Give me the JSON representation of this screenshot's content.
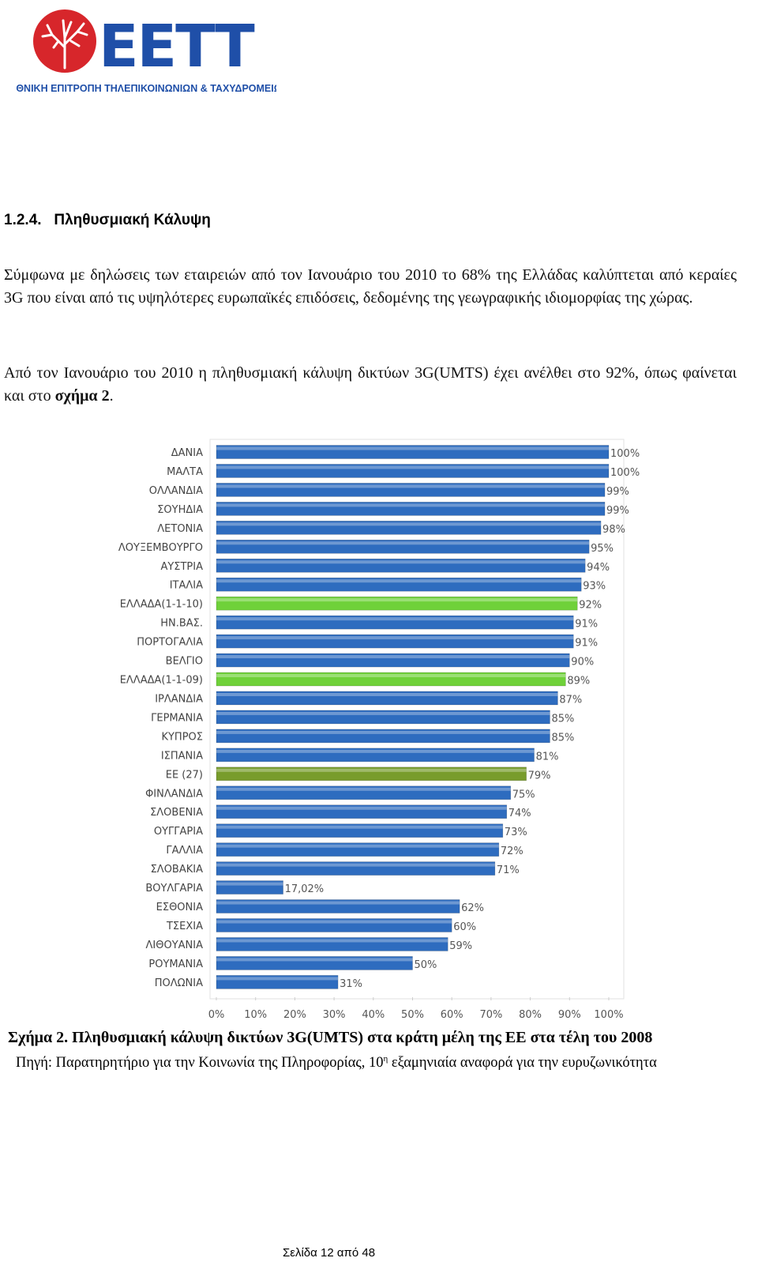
{
  "header": {
    "logo_text": "EETT",
    "org": "ΕΘΝΙΚΗ ΕΠΙΤΡΟΠΗ ΤΗΛΕΠΙΚΟΙΝΩΝΙΩΝ & ΤΑΧΥΔΡΟΜΕΙΩΝ"
  },
  "section": {
    "number": "1.2.4.",
    "title": "Πληθυσμιακή Κάλυψη"
  },
  "paragraphs": [
    [
      "Σύμφωνα με δηλώσεις των εταιρειών από τον Ιανουάριο του 2010 το 68% της Ελλάδας καλύπτεται από κεραίες 3G που είναι από τις υψηλότερες ευρωπαϊκές επιδόσεις, δεδομένης της γεωγραφικής ιδιομορφίας της χώρας."
    ],
    [
      "Από τον Ιανουάριο του 2010 η πληθυσμιακή κάλυψη δικτύων 3G(UMTS) έχει ανέλθει στο 92%, όπως φαίνεται και στο ",
      "σχήμα 2",
      "."
    ]
  ],
  "chart_data": {
    "type": "bar",
    "orientation": "horizontal",
    "categories": [
      "ΔΑΝΙΑ",
      "ΜΑΛΤΑ",
      "ΟΛΛΑΝΔΙΑ",
      "ΣΟΥΗΔΙΑ",
      "ΛΕΤΟΝΙΑ",
      "ΛΟΥΞΕΜΒΟΥΡΓΟ",
      "ΑΥΣΤΡΙΑ",
      "ΙΤΑΛΙΑ",
      "ΕΛΛΑΔΑ(1-1-10)",
      "ΗΝ.ΒΑΣ.",
      "ΠΟΡΤΟΓΑΛΙΑ",
      "ΒΕΛΓΙΟ",
      "ΕΛΛΑΔΑ(1-1-09)",
      "ΙΡΛΑΝΔΙΑ",
      "ΓΕΡΜΑΝΙΑ",
      "ΚΥΠΡΟΣ",
      "ΙΣΠΑΝΙΑ",
      "ΕΕ (27)",
      "ΦΙΝΛΑΝΔΙΑ",
      "ΣΛΟΒΕΝΙΑ",
      "ΟΥΓΓΑΡΙΑ",
      "ΓΑΛΛΙΑ",
      "ΣΛΟΒΑΚΙΑ",
      "ΒΟΥΛΓΑΡΙΑ",
      "ΕΣΘΟΝΙΑ",
      "ΤΣΕΧΙΑ",
      "ΛΙΘΟΥΑΝΙΑ",
      "ΡΟΥΜΑΝΙΑ",
      "ΠΟΛΩΝΙΑ"
    ],
    "values": [
      100,
      100,
      99,
      99,
      98,
      95,
      94,
      93,
      92,
      91,
      91,
      90,
      89,
      87,
      85,
      85,
      81,
      79,
      75,
      74,
      73,
      72,
      71,
      17.02,
      62,
      60,
      59,
      50,
      31
    ],
    "value_labels": [
      "100%",
      "100%",
      "99%",
      "99%",
      "98%",
      "95%",
      "94%",
      "93%",
      "92%",
      "91%",
      "91%",
      "90%",
      "89%",
      "87%",
      "85%",
      "85%",
      "81%",
      "79%",
      "75%",
      "74%",
      "73%",
      "72%",
      "71%",
      "17,02%",
      "62%",
      "60%",
      "59%",
      "50%",
      "31%"
    ],
    "colors": [
      "#2e6cbf",
      "#2e6cbf",
      "#2e6cbf",
      "#2e6cbf",
      "#2e6cbf",
      "#2e6cbf",
      "#2e6cbf",
      "#2e6cbf",
      "#6fd13a",
      "#2e6cbf",
      "#2e6cbf",
      "#2e6cbf",
      "#6fd13a",
      "#2e6cbf",
      "#2e6cbf",
      "#2e6cbf",
      "#2e6cbf",
      "#789c2c",
      "#2e6cbf",
      "#2e6cbf",
      "#2e6cbf",
      "#2e6cbf",
      "#2e6cbf",
      "#2e6cbf",
      "#2e6cbf",
      "#2e6cbf",
      "#2e6cbf",
      "#2e6cbf",
      "#2e6cbf"
    ],
    "xlim": [
      0,
      100
    ],
    "xticks": [
      {
        "value": 0,
        "label": "0%"
      },
      {
        "value": 10,
        "label": "10%"
      },
      {
        "value": 20,
        "label": "20%"
      },
      {
        "value": 30,
        "label": "30%"
      },
      {
        "value": 40,
        "label": "40%"
      },
      {
        "value": 50,
        "label": "50%"
      },
      {
        "value": 60,
        "label": "60%"
      },
      {
        "value": 70,
        "label": "70%"
      },
      {
        "value": 80,
        "label": "80%"
      },
      {
        "value": 90,
        "label": "90%"
      },
      {
        "value": 100,
        "label": "100%"
      }
    ],
    "grid": false
  },
  "caption": "Σχήμα 2. Πληθυσμιακή κάλυψη δικτύων 3G(UMTS) στα κράτη μέλη της ΕΕ στα τέλη του 2008",
  "source": [
    "Πηγή: Παρατηρητήριο για την Κοινωνία της Πληροφορίας, 10",
    "η",
    " εξαμηνιαία αναφορά για την ευρυζωνικότητα"
  ],
  "footer": "Σελίδα 12 από 48"
}
